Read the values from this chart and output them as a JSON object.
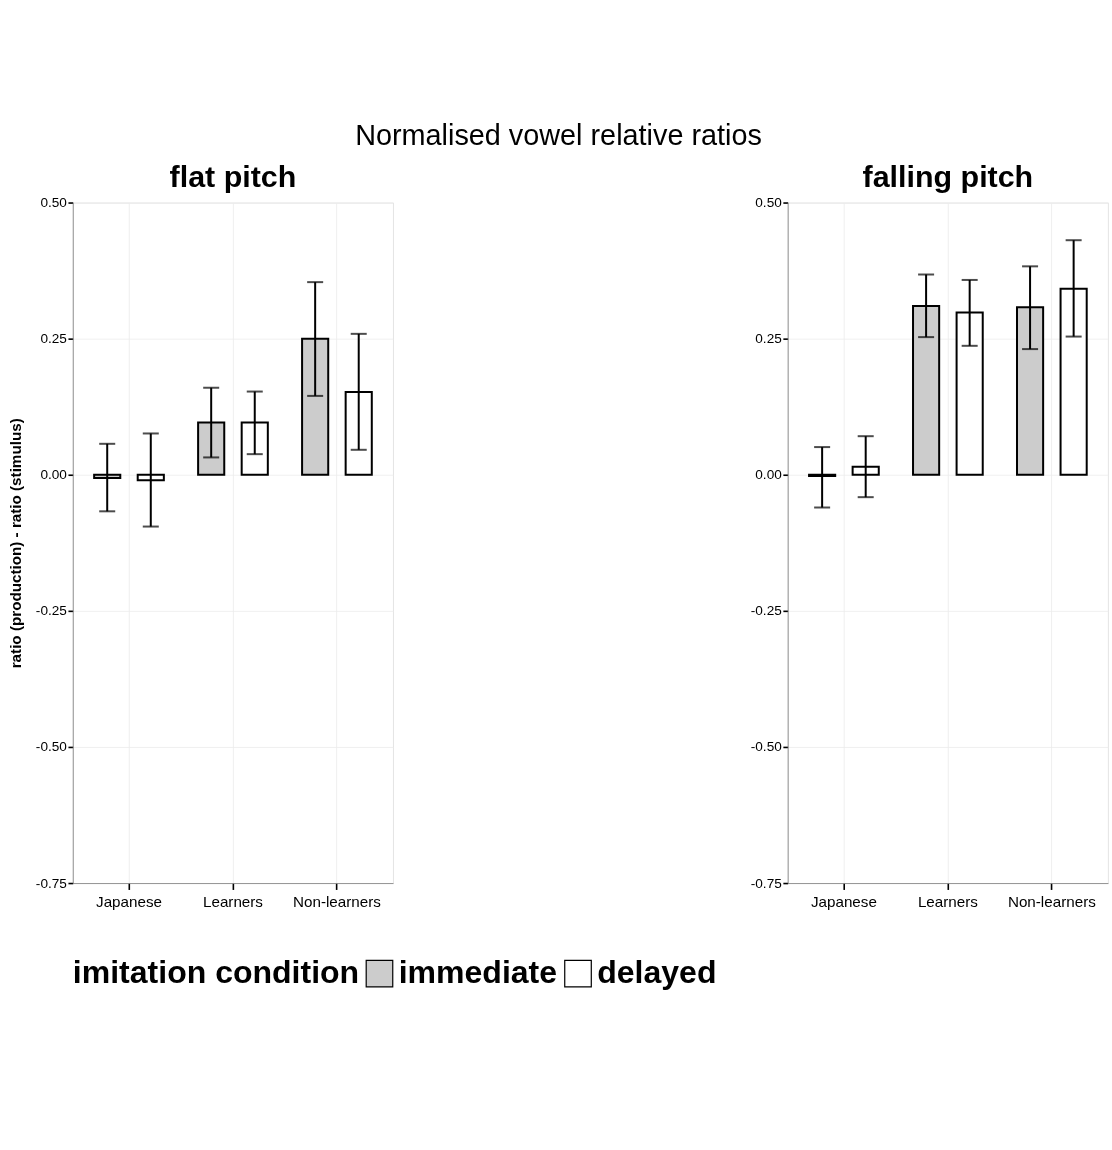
{
  "chart_data": [
    {
      "type": "bar",
      "title": "Normalised vowel relative ratios",
      "subtitle": "flat pitch",
      "ylabel": "ratio (production) - ratio (stimulus)",
      "legend_title": "imitation condition",
      "legend": "bottom",
      "categories": [
        "Japanese",
        "Learners",
        "Non-learners"
      ],
      "series": [
        {
          "name": "immediate",
          "color": "#cccccc",
          "values": [
            -0.006,
            0.096,
            0.25
          ],
          "errors": [
            [
              -0.067,
              0.057
            ],
            [
              0.032,
              0.16
            ],
            [
              0.145,
              0.354
            ]
          ]
        },
        {
          "name": "delayed",
          "color": "#ffffff",
          "values": [
            -0.01,
            0.096,
            0.152
          ],
          "errors": [
            [
              -0.095,
              0.076
            ],
            [
              0.038,
              0.153
            ],
            [
              0.046,
              0.259
            ]
          ]
        }
      ],
      "ylim": [
        -0.75,
        0.5
      ],
      "yticks": [
        {
          "value": 0.5,
          "label": "0.50"
        },
        {
          "value": 0.25,
          "label": "0.25"
        },
        {
          "value": 0,
          "label": "0.00"
        },
        {
          "value": -0.25,
          "label": "-0.25"
        },
        {
          "value": -0.5,
          "label": "-0.50"
        },
        {
          "value": -0.75,
          "label": "-0.75"
        }
      ],
      "grid": true
    },
    {
      "type": "bar",
      "subtitle": "falling pitch",
      "categories": [
        "Japanese",
        "Learners",
        "Non-learners"
      ],
      "series": [
        {
          "color": "#cccccc",
          "values": [
            -0.002,
            0.31,
            0.308
          ],
          "errors": [
            [
              -0.06,
              0.051
            ],
            [
              0.253,
              0.368
            ],
            [
              0.231,
              0.383
            ]
          ]
        },
        {
          "color": "#ffffff",
          "values": [
            0.015,
            0.298,
            0.342
          ],
          "errors": [
            [
              -0.041,
              0.071
            ],
            [
              0.237,
              0.358
            ],
            [
              0.254,
              0.431
            ]
          ]
        }
      ],
      "ylim": [
        -0.75,
        0.5
      ],
      "yticks": [
        {
          "value": 0.5,
          "label": "0.50"
        },
        {
          "value": 0.25,
          "label": "0.25"
        },
        {
          "value": 0,
          "label": "0.00"
        },
        {
          "value": -0.25,
          "label": "-0.25"
        },
        {
          "value": -0.5,
          "label": "-0.50"
        },
        {
          "value": -0.75,
          "label": "-0.75"
        }
      ],
      "grid": true
    }
  ]
}
